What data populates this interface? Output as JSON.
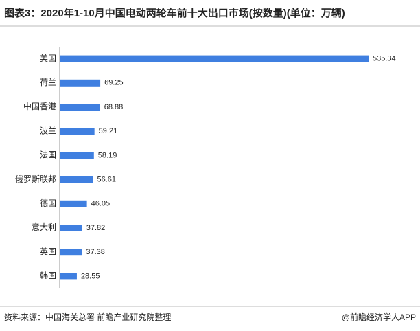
{
  "chart_data": {
    "type": "bar",
    "horizontal": true,
    "title": "图表3：2020年1-10月中国电动两轮车前十大出口市场(按数量)(单位：万辆)",
    "categories": [
      "美国",
      "荷兰",
      "中国香港",
      "波兰",
      "法国",
      "俄罗斯联邦",
      "德国",
      "意大利",
      "英国",
      "韩国"
    ],
    "values": [
      535.34,
      69.25,
      68.88,
      59.21,
      58.19,
      56.61,
      46.05,
      37.82,
      37.38,
      28.55
    ],
    "color": "#3f7fe0",
    "source": "资料来源：中国海关总署 前瞻产业研究院整理",
    "credit": "@前瞻经济学人APP"
  }
}
